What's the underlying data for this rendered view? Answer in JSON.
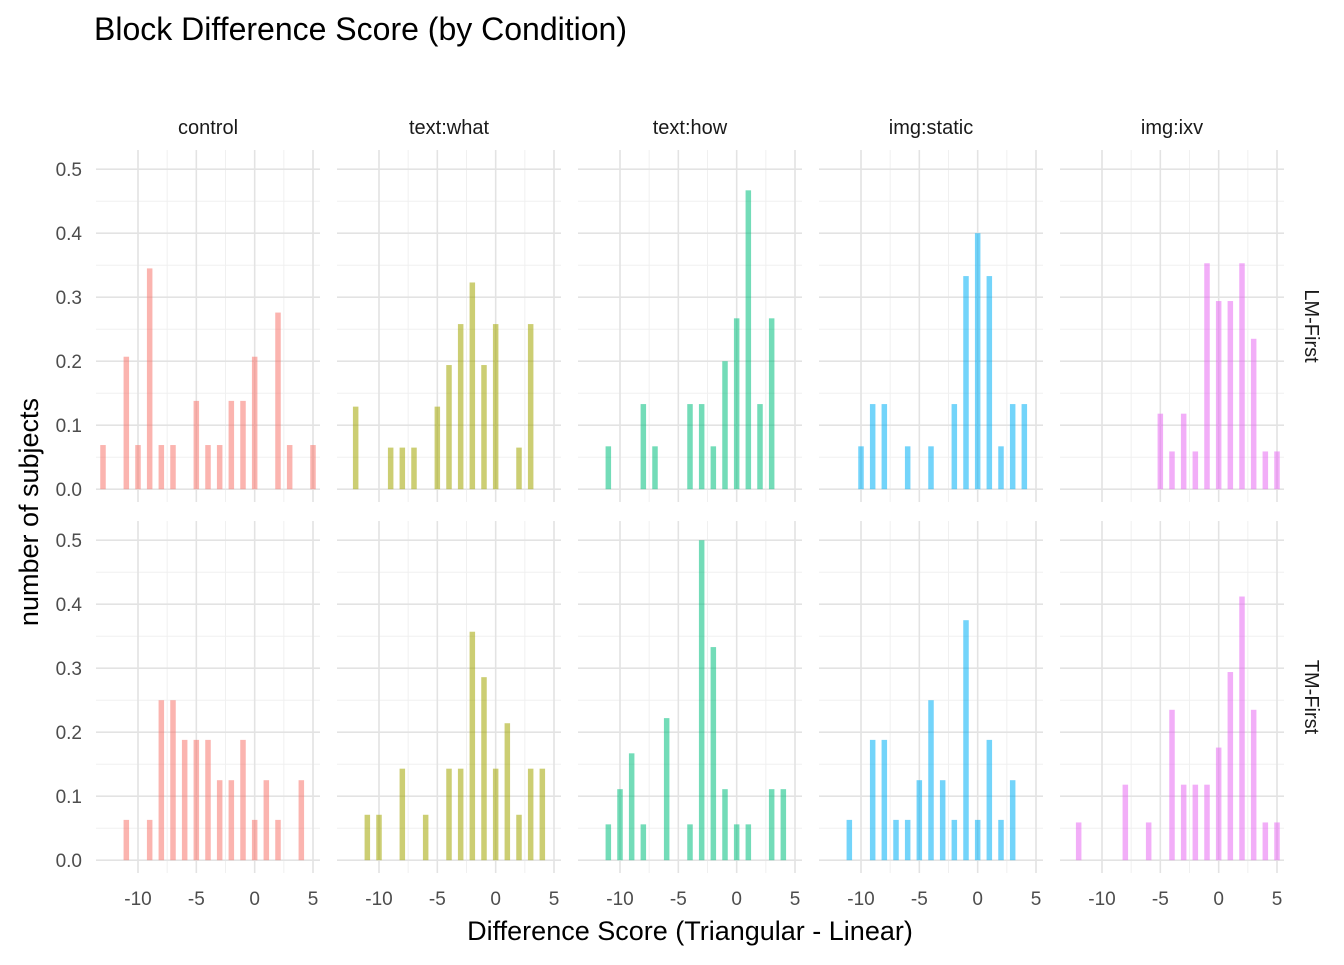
{
  "chart_data": {
    "type": "bar",
    "title": "Block Difference Score (by Condition)",
    "xlabel": "Difference Score (Triangular - Linear)",
    "ylabel": "number of subjects",
    "xlim": [
      -13.6,
      5.6
    ],
    "ylim": [
      -0.02,
      0.53
    ],
    "x_ticks": [
      -10,
      -5,
      0,
      5
    ],
    "x_tick_labels": [
      "-10",
      "-5",
      "0",
      "5"
    ],
    "y_ticks": [
      0.0,
      0.1,
      0.2,
      0.3,
      0.4,
      0.5
    ],
    "y_tick_labels": [
      "0.0",
      "0.1",
      "0.2",
      "0.3",
      "0.4",
      "0.5"
    ],
    "grid": true,
    "columns": [
      {
        "label": "control",
        "color": "#F8766D"
      },
      {
        "label": "text:what",
        "color": "#A3A500"
      },
      {
        "label": "text:how",
        "color": "#00BF7D"
      },
      {
        "label": "img:static",
        "color": "#00B0F6"
      },
      {
        "label": "img:ixv",
        "color": "#E76BF3"
      }
    ],
    "rows": [
      {
        "label": "LM-First"
      },
      {
        "label": "TM-First"
      }
    ],
    "panels": [
      {
        "row": 0,
        "col": 0,
        "x": [
          -13,
          -11,
          -10,
          -9,
          -8,
          -7,
          -5,
          -4,
          -3,
          -2,
          -1,
          0,
          2,
          3,
          5
        ],
        "y": [
          0.069,
          0.207,
          0.069,
          0.345,
          0.069,
          0.069,
          0.138,
          0.069,
          0.069,
          0.138,
          0.138,
          0.207,
          0.276,
          0.069,
          0.069
        ]
      },
      {
        "row": 0,
        "col": 1,
        "x": [
          -12,
          -9,
          -8,
          -7,
          -5,
          -4,
          -3,
          -2,
          -1,
          0,
          2,
          3
        ],
        "y": [
          0.129,
          0.065,
          0.065,
          0.065,
          0.129,
          0.194,
          0.258,
          0.323,
          0.194,
          0.258,
          0.065,
          0.258
        ]
      },
      {
        "row": 0,
        "col": 2,
        "x": [
          -11,
          -8,
          -7,
          -4,
          -3,
          -2,
          -1,
          0,
          1,
          2,
          3
        ],
        "y": [
          0.067,
          0.133,
          0.067,
          0.133,
          0.133,
          0.067,
          0.2,
          0.267,
          0.467,
          0.133,
          0.267
        ]
      },
      {
        "row": 0,
        "col": 3,
        "x": [
          -10,
          -9,
          -8,
          -6,
          -4,
          -2,
          -1,
          0,
          1,
          2,
          3,
          4
        ],
        "y": [
          0.067,
          0.133,
          0.133,
          0.067,
          0.067,
          0.133,
          0.333,
          0.4,
          0.333,
          0.067,
          0.133,
          0.133
        ]
      },
      {
        "row": 0,
        "col": 4,
        "x": [
          -5,
          -4,
          -3,
          -2,
          -1,
          0,
          1,
          2,
          3,
          4,
          5
        ],
        "y": [
          0.118,
          0.059,
          0.118,
          0.059,
          0.353,
          0.294,
          0.294,
          0.353,
          0.235,
          0.059,
          0.059
        ]
      },
      {
        "row": 1,
        "col": 0,
        "x": [
          -11,
          -9,
          -8,
          -7,
          -6,
          -5,
          -4,
          -3,
          -2,
          -1,
          0,
          1,
          2,
          4
        ],
        "y": [
          0.063,
          0.063,
          0.25,
          0.25,
          0.188,
          0.188,
          0.188,
          0.125,
          0.125,
          0.188,
          0.063,
          0.125,
          0.063,
          0.125
        ]
      },
      {
        "row": 1,
        "col": 1,
        "x": [
          -11,
          -10,
          -8,
          -6,
          -4,
          -3,
          -2,
          -1,
          0,
          1,
          2,
          3,
          4
        ],
        "y": [
          0.071,
          0.071,
          0.143,
          0.071,
          0.143,
          0.143,
          0.357,
          0.286,
          0.143,
          0.214,
          0.071,
          0.143,
          0.143
        ]
      },
      {
        "row": 1,
        "col": 2,
        "x": [
          -11,
          -10,
          -9,
          -8,
          -6,
          -4,
          -3,
          -2,
          -1,
          0,
          1,
          3,
          4
        ],
        "y": [
          0.056,
          0.111,
          0.167,
          0.056,
          0.222,
          0.056,
          0.5,
          0.333,
          0.111,
          0.056,
          0.056,
          0.111,
          0.111
        ]
      },
      {
        "row": 1,
        "col": 3,
        "x": [
          -11,
          -9,
          -8,
          -7,
          -6,
          -5,
          -4,
          -3,
          -2,
          -1,
          0,
          1,
          2,
          3
        ],
        "y": [
          0.063,
          0.188,
          0.188,
          0.063,
          0.063,
          0.125,
          0.25,
          0.125,
          0.063,
          0.375,
          0.063,
          0.188,
          0.063,
          0.125
        ]
      },
      {
        "row": 1,
        "col": 4,
        "x": [
          -12,
          -8,
          -6,
          -4,
          -3,
          -2,
          -1,
          0,
          1,
          2,
          3,
          4,
          5
        ],
        "y": [
          0.059,
          0.118,
          0.059,
          0.235,
          0.118,
          0.118,
          0.118,
          0.176,
          0.294,
          0.412,
          0.235,
          0.059,
          0.059
        ]
      }
    ]
  }
}
